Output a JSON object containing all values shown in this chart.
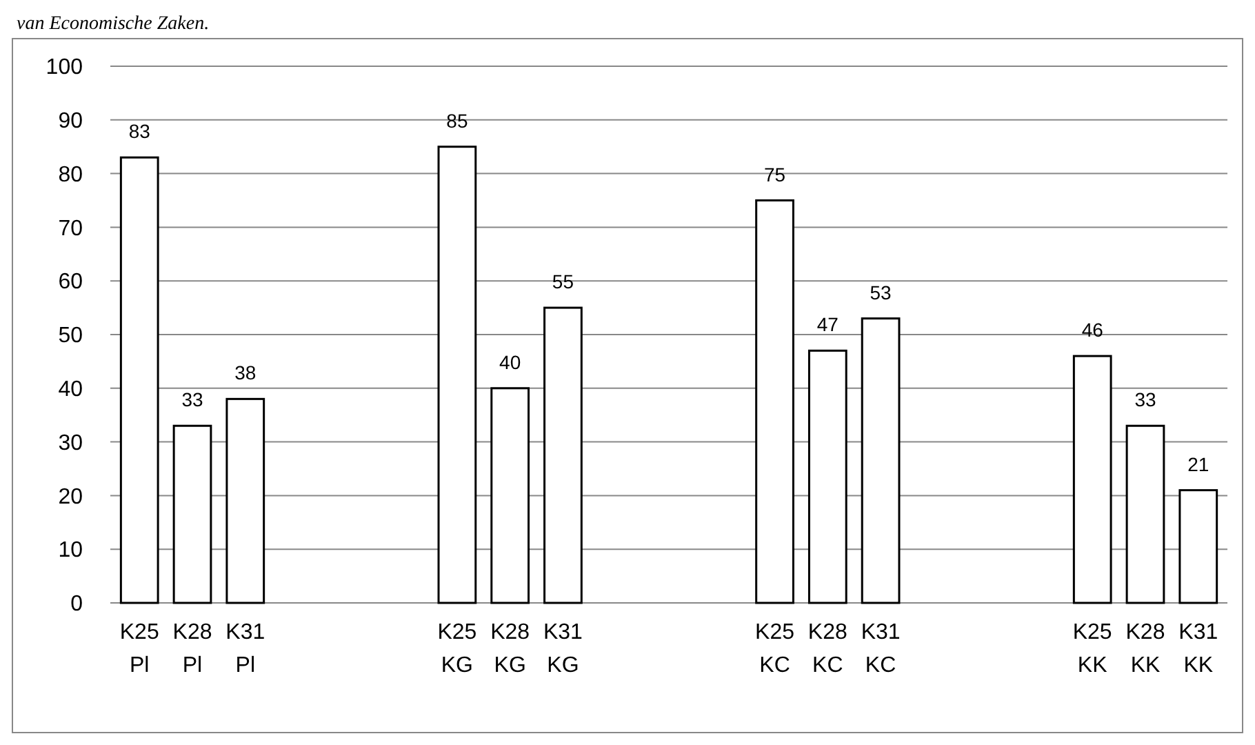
{
  "chart_data": {
    "type": "bar",
    "annotations": [
      "van Economische Zaken."
    ],
    "categories": [
      "K25\nPl",
      "K28\nPl",
      "K31\nPl",
      null,
      null,
      null,
      "K25\nKG",
      "K28\nKG",
      "K31\nKG",
      null,
      null,
      null,
      "K25\nKC",
      "K28\nKC",
      "K31\nKC",
      null,
      null,
      null,
      "K25\nKK",
      "K28\nKK",
      "K31\nKK"
    ],
    "values": [
      83,
      33,
      38,
      null,
      null,
      null,
      85,
      40,
      55,
      null,
      null,
      null,
      75,
      47,
      53,
      null,
      null,
      null,
      46,
      33,
      21
    ],
    "color": "#ffffff",
    "ylim": [
      0,
      100
    ],
    "yticks": [
      0,
      10,
      20,
      30,
      40,
      50,
      60,
      70,
      80,
      90,
      100
    ],
    "grid": "y",
    "data_labels": true
  }
}
